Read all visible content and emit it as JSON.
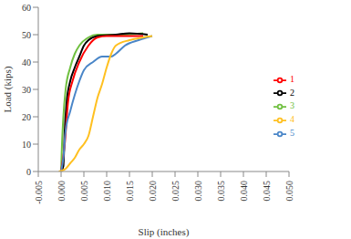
{
  "chart_data": {
    "type": "line",
    "x_label": "Slip (inches)",
    "y_label": "Load (kips)",
    "xlim": [
      -0.005,
      0.05
    ],
    "xticks": [
      {
        "value": -0.005,
        "label": "-0.005"
      },
      {
        "value": 0,
        "label": "0.000"
      },
      {
        "value": 0.005,
        "label": "0.005"
      },
      {
        "value": 0.01,
        "label": "0.010"
      },
      {
        "value": 0.015,
        "label": "0.015"
      },
      {
        "value": 0.02,
        "label": "0.020"
      },
      {
        "value": 0.025,
        "label": "0.025"
      },
      {
        "value": 0.03,
        "label": "0.030"
      },
      {
        "value": 0.035,
        "label": "0.035"
      },
      {
        "value": 0.04,
        "label": "0.040"
      },
      {
        "value": 0.045,
        "label": "0.045"
      },
      {
        "value": 0.05,
        "label": "0.050"
      }
    ],
    "ylim": [
      0,
      60
    ],
    "yticks": [
      0,
      10,
      20,
      30,
      40,
      50,
      60
    ],
    "grid": false,
    "legend": "right",
    "series": [
      {
        "name": "3",
        "color": "#70c040",
        "x": [
          0,
          0.0002,
          0.0005,
          0.001,
          0.002,
          0.003,
          0.004,
          0.006,
          0.008,
          0.012,
          0.018
        ],
        "values": [
          0,
          10,
          20,
          30,
          38,
          43,
          46,
          49,
          50,
          50,
          50.5
        ]
      },
      {
        "name": "2",
        "color": "#000000",
        "x": [
          0,
          0.0005,
          0.0008,
          0.0012,
          0.002,
          0.003,
          0.004,
          0.005,
          0.006,
          0.008,
          0.012,
          0.015,
          0.019
        ],
        "values": [
          0,
          2,
          15,
          25,
          33,
          38,
          42,
          46,
          48,
          49.5,
          50,
          50.5,
          50
        ]
      },
      {
        "name": "1",
        "color": "#ff0000",
        "x": [
          0,
          0.0008,
          0.0015,
          0.0025,
          0.004,
          0.006,
          0.008,
          0.01,
          0.015,
          0.018
        ],
        "values": [
          0,
          10,
          25,
          33,
          40,
          46,
          49,
          49.5,
          49.5,
          49.5
        ]
      },
      {
        "name": "5",
        "color": "#4a86c8",
        "x": [
          0,
          0.0005,
          0.001,
          0.002,
          0.003,
          0.004,
          0.005,
          0.007,
          0.009,
          0.011,
          0.012,
          0.014,
          0.017,
          0.02
        ],
        "values": [
          0,
          5,
          15,
          22,
          28,
          33,
          37,
          40,
          42,
          42,
          43,
          46,
          48,
          49.5
        ]
      },
      {
        "name": "4",
        "color": "#ffc020",
        "x": [
          -0.0005,
          0.001,
          0.002,
          0.003,
          0.004,
          0.005,
          0.006,
          0.007,
          0.008,
          0.009,
          0.01,
          0.011,
          0.012,
          0.015,
          0.018,
          0.02
        ],
        "values": [
          0,
          1,
          3,
          5,
          8,
          10,
          13,
          20,
          27,
          32,
          38,
          43,
          46,
          48,
          49,
          49.5
        ]
      }
    ]
  }
}
